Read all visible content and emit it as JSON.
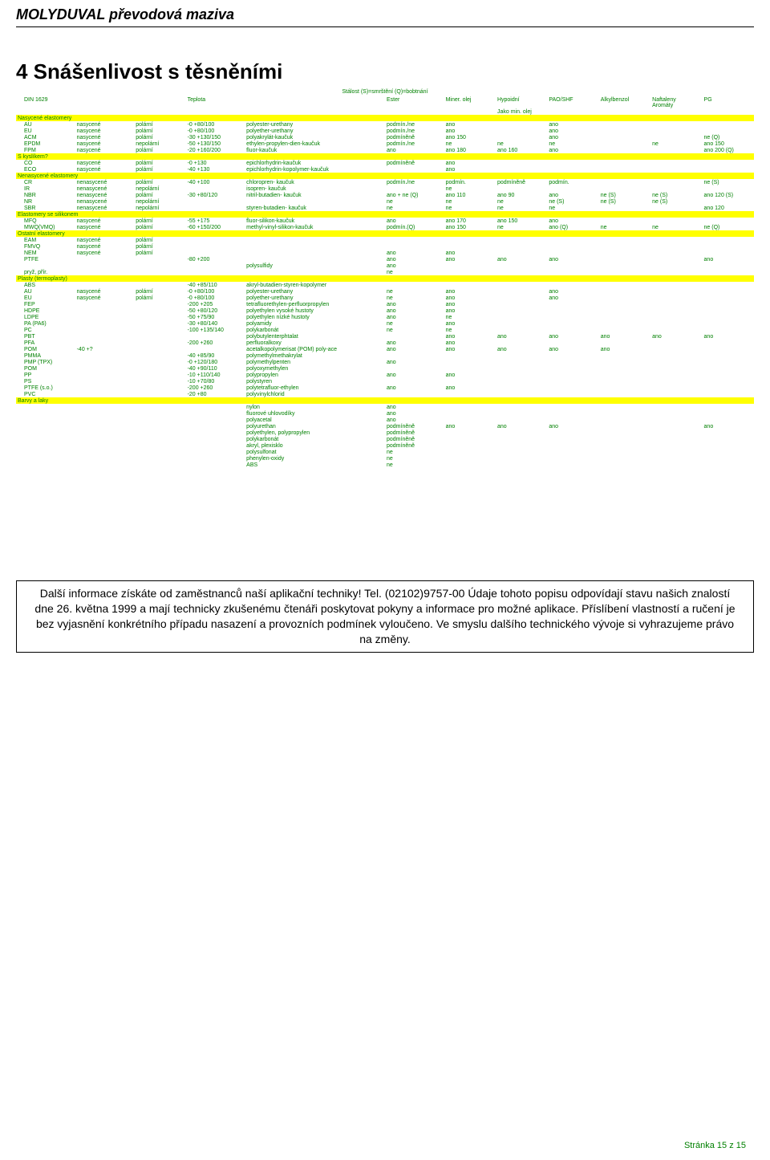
{
  "header": "MOLYDUVAL převodová maziva",
  "section_title": "4  Snášenlivost s těsněními",
  "caption": "Stálost  (S)=smrštění  (Q)=bobtnání",
  "columns": {
    "din": "DIN 1629",
    "teplota": "Teplota",
    "ester": "Ester",
    "miner": "Miner. olej",
    "hypoidni": "Hypoidní",
    "pao": "PAO/SHF",
    "alkyl": "Alkylbenzol",
    "naftaleny": "Naftaleny\nAromáty",
    "pg": "PG",
    "jako": "Jako min. olej"
  },
  "groups": [
    {
      "label": "Nasycené elastomery",
      "rows": [
        [
          "AU",
          "nasycené",
          "polární",
          "-0 +80/100",
          "polyester-urethany",
          "podmín./ne",
          "ano",
          "",
          "ano",
          "",
          "",
          ""
        ],
        [
          "EU",
          "nasycené",
          "polární",
          "-0 +80/100",
          "polyether-urethany",
          "podmín./ne",
          "ano",
          "",
          "ano",
          "",
          "",
          ""
        ],
        [
          "ACM",
          "nasycené",
          "polární",
          "-30 +130/150",
          "polyakrylát-kaučuk",
          "podmíněně",
          "ano 150",
          "",
          "ano",
          "",
          "",
          "ne (Q)"
        ],
        [
          "EPDM",
          "nasycené",
          "nepolární",
          "-50 +130/150",
          "ethylen-propylen-dien-kaučuk",
          "podmín./ne",
          "ne",
          "ne",
          "ne",
          "",
          "ne",
          "ano 150"
        ],
        [
          "FPM",
          "nasycené",
          "polární",
          "-20 +160/200",
          "fluor-kaučuk",
          "ano",
          "ano 180",
          "ano 160",
          "ano",
          "",
          "",
          "ano 200 (Q)"
        ]
      ]
    },
    {
      "label": "S kyslíkem?",
      "rows": [
        [
          "CO",
          "nasycené",
          "polární",
          "-0 +130",
          "epichlorhydrin-kaučuk",
          "podmíněně",
          "ano",
          "",
          "",
          "",
          "",
          ""
        ],
        [
          "ECO",
          "nasycené",
          "polární",
          "-40 +130",
          "epichlorhydrin-kopolymer-kaučuk",
          "",
          "ano",
          "",
          "",
          "",
          "",
          ""
        ]
      ]
    },
    {
      "label": "Nenasycené elastomery",
      "rows": [
        [
          "CR",
          "nenasycené",
          "polární",
          "-40 +100",
          "chloropren- kaučuk",
          "podmín./ne",
          "podmín.",
          "podmíněně",
          "podmín.",
          "",
          "",
          "ne (S)"
        ],
        [
          "IR",
          "nenasycené",
          "nepolární",
          "",
          "isopren- kaučuk",
          "",
          "ne",
          "",
          "",
          "",
          "",
          ""
        ],
        [
          "NBR",
          "nenasycené",
          "polární",
          "-30 +80/120",
          "nitril-butadien- kaučuk",
          "ano + ne (Q)",
          "ano 110",
          "ano 90",
          "ano",
          "ne (S)",
          "ne (S)",
          "ano 120 (S)"
        ],
        [
          "NR",
          "nenasycené",
          "nepolární",
          "",
          "",
          "ne",
          "ne",
          "ne",
          "ne (S)",
          "ne (S)",
          "ne (S)",
          ""
        ],
        [
          "SBR",
          "nenasycené",
          "nepolární",
          "",
          "styren-butadien- kaučuk",
          "ne",
          "ne",
          "ne",
          "ne",
          "",
          "",
          "ano 120"
        ]
      ]
    },
    {
      "label": "Elastomery se silikonem",
      "rows": [
        [
          "MFQ",
          "nasycené",
          "polární",
          "-55 +175",
          "fluor-silikon-kaučuk",
          "ano",
          "ano 170",
          "ano 150",
          "ano",
          "",
          "",
          ""
        ],
        [
          "MWQ(VMQ)",
          "nasycené",
          "polární",
          "-60 +150/200",
          "methyl-vinyl-silikon-kaučuk",
          "podmín.(Q)",
          "ano 150",
          "ne",
          "ano (Q)",
          "ne",
          "ne",
          "ne (Q)"
        ]
      ]
    },
    {
      "label": "Ostatní elastomery",
      "rows": [
        [
          "EAM",
          "nasycené",
          "polární",
          "",
          "",
          "",
          "",
          "",
          "",
          "",
          "",
          ""
        ],
        [
          "FMVQ",
          "nasycené",
          "polární",
          "",
          "",
          "",
          "",
          "",
          "",
          "",
          "",
          ""
        ],
        [
          "NEM",
          "nasycené",
          "polární",
          "",
          "",
          "ano",
          "ano",
          "",
          "",
          "",
          "",
          ""
        ],
        [
          "PTFE",
          "",
          "",
          "-80 +200",
          "",
          "ano",
          "ano",
          "ano",
          "ano",
          "",
          "",
          "ano"
        ],
        [
          "",
          "",
          "",
          "",
          "polysulfidy",
          "ano",
          "",
          "",
          "",
          "",
          "",
          ""
        ],
        [
          "pryž, přír.",
          "",
          "",
          "",
          "",
          "ne",
          "",
          "",
          "",
          "",
          "",
          ""
        ]
      ]
    },
    {
      "label": "Plasty (termoplasty)",
      "rows": [
        [
          "ABS",
          "",
          "",
          "-40 +85/110",
          "akryl-butadien-styren-kopolymer",
          "",
          "",
          "",
          "",
          "",
          "",
          ""
        ],
        [
          "AU",
          "nasycené",
          "polární",
          "-0 +80/100",
          "polyester-urethany",
          "ne",
          "ano",
          "",
          "ano",
          "",
          "",
          ""
        ],
        [
          "EU",
          "nasycené",
          "polární",
          "-0 +80/100",
          "polyether-urethany",
          "ne",
          "ano",
          "",
          "ano",
          "",
          "",
          ""
        ],
        [
          "FEP",
          "",
          "",
          "-200 +205",
          "tetrafluorethylen-perfluorpropylen",
          "ano",
          "ano",
          "",
          "",
          "",
          "",
          ""
        ],
        [
          "HDPE",
          "",
          "",
          "-50 +80/120",
          "polyethylen vysoké hustoty",
          "ano",
          "ano",
          "",
          "",
          "",
          "",
          ""
        ],
        [
          "LDPE",
          "",
          "",
          "-50 +75/90",
          "polyethylen nízké hustoty",
          "ano",
          "ne",
          "",
          "",
          "",
          "",
          ""
        ],
        [
          "PA (PA6)",
          "",
          "",
          "-30 +80/140",
          "polyamidy",
          "ne",
          "ano",
          "",
          "",
          "",
          "",
          ""
        ],
        [
          "PC",
          "",
          "",
          "-100 +135/140",
          "polykarbonát",
          "ne",
          "ne",
          "",
          "",
          "",
          "",
          ""
        ],
        [
          "PBT",
          "",
          "",
          "",
          "polybutylenterphtalat",
          "",
          "ano",
          "ano",
          "ano",
          "ano",
          "ano",
          "ano"
        ],
        [
          "PFA",
          "",
          "",
          "-200 +260",
          "perfluoralkoxy",
          "ano",
          "ano",
          "",
          "",
          "",
          "",
          ""
        ],
        [
          "POM",
          "-40 +?",
          "",
          "",
          "acetalkopolymerisat (POM) poly-ace",
          "ano",
          "ano",
          "ano",
          "ano",
          "ano",
          "",
          ""
        ],
        [
          "PMMA",
          "",
          "",
          "-40 +85/90",
          "polymethylmethakrylat",
          "",
          "",
          "",
          "",
          "",
          "",
          ""
        ],
        [
          "PMP (TPX)",
          "",
          "",
          "-0 +120/180",
          "polymethylpenten",
          "ano",
          "",
          "",
          "",
          "",
          "",
          ""
        ],
        [
          "POM",
          "",
          "",
          "-40 +90/110",
          "polyoxymethylen",
          "",
          "",
          "",
          "",
          "",
          "",
          ""
        ],
        [
          "PP",
          "",
          "",
          "-10 +110/140",
          "polypropylen",
          "ano",
          "ano",
          "",
          "",
          "",
          "",
          ""
        ],
        [
          "PS",
          "",
          "",
          "-10 +70/80",
          "polystyren",
          "",
          "",
          "",
          "",
          "",
          "",
          ""
        ],
        [
          "PTFE (s.o.)",
          "",
          "",
          "-200 +260",
          "polytetrafluor-ethylen",
          "ano",
          "ano",
          "",
          "",
          "",
          "",
          ""
        ],
        [
          "PVC",
          "",
          "",
          "-20 +80",
          "polyvinylchlorid",
          "",
          "",
          "",
          "",
          "",
          "",
          ""
        ]
      ]
    },
    {
      "label": "Barvy a laky",
      "rows": [
        [
          "",
          "",
          "",
          "",
          "nylon",
          "ano",
          "",
          "",
          "",
          "",
          "",
          ""
        ],
        [
          "",
          "",
          "",
          "",
          "fluorové uhlovodíky",
          "ano",
          "",
          "",
          "",
          "",
          "",
          ""
        ],
        [
          "",
          "",
          "",
          "",
          "polyacetal",
          "ano",
          "",
          "",
          "",
          "",
          "",
          ""
        ],
        [
          "",
          "",
          "",
          "",
          "polyurethan",
          "podmíněně",
          "ano",
          "ano",
          "ano",
          "",
          "",
          "ano"
        ],
        [
          "",
          "",
          "",
          "",
          "polyethylen, polypropylen",
          "podmíněně",
          "",
          "",
          "",
          "",
          "",
          ""
        ],
        [
          "",
          "",
          "",
          "",
          "polykarbonát",
          "podmíněně",
          "",
          "",
          "",
          "",
          "",
          ""
        ],
        [
          "",
          "",
          "",
          "",
          "akryl, plexisklo",
          "podmíněně",
          "",
          "",
          "",
          "",
          "",
          ""
        ],
        [
          "",
          "",
          "",
          "",
          "polysulfonat",
          "ne",
          "",
          "",
          "",
          "",
          "",
          ""
        ],
        [
          "",
          "",
          "",
          "",
          "phenylen-oxidy",
          "ne",
          "",
          "",
          "",
          "",
          "",
          ""
        ],
        [
          "",
          "",
          "",
          "",
          "ABS",
          "ne",
          "",
          "",
          "",
          "",
          "",
          ""
        ]
      ]
    }
  ],
  "footer_text": "Další informace získáte od zaměstnanců naší aplikační techniky! Tel. (02102)9757-00 Údaje tohoto popisu odpovídají stavu našich znalostí dne 26. května 1999 a mají technicky zkušenému čtenáři poskytovat pokyny a informace pro možné aplikace. Příslíbení vlastností a ručení je bez vyjasnění konkrétního případu nasazení a provozních podmínek vyloučeno. Ve smyslu dalšího technického vývoje si vyhrazujeme právo na změny.",
  "page_num": "Stránka 15 z 15",
  "colors": {
    "green": "#008000",
    "yellow": "#ffff00"
  }
}
